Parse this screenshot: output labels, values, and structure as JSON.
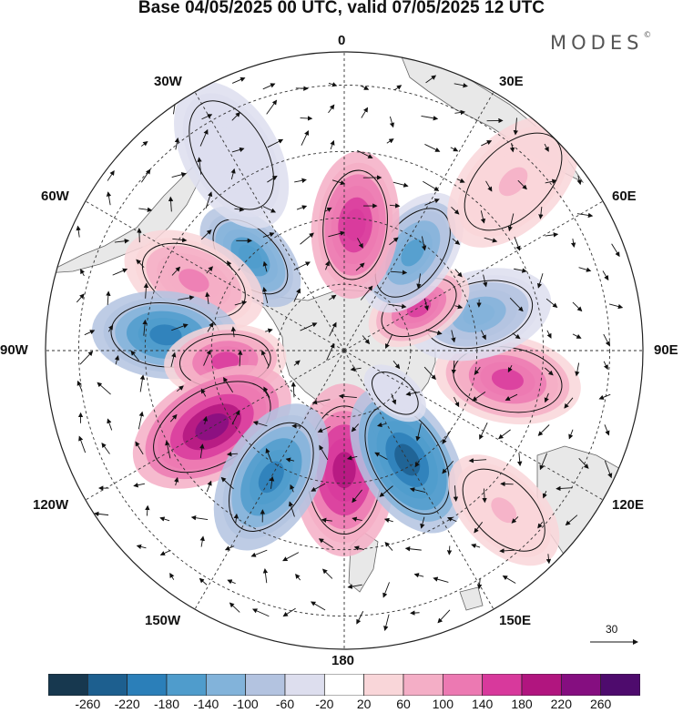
{
  "title": "Base 04/05/2025 00 UTC, valid 07/05/2025 12 UTC",
  "brand": {
    "name": "MODES",
    "mark": "©"
  },
  "longitude_labels": {
    "n0": "0",
    "n30e": "30E",
    "n60e": "60E",
    "n90e": "90E",
    "n120e": "120E",
    "n150e": "150E",
    "n180": "180",
    "n150w": "150W",
    "n120w": "120W",
    "n90w": "90W",
    "n60w": "60W",
    "n30w": "30W"
  },
  "reference_vector": {
    "label": "30"
  },
  "colorbar": {
    "ticks": [
      "-260",
      "-220",
      "-180",
      "-140",
      "-100",
      "-60",
      "-20",
      "20",
      "60",
      "100",
      "140",
      "180",
      "220",
      "260"
    ],
    "colors": [
      "#17384f",
      "#1d5f8f",
      "#2b7fb9",
      "#4f9ccc",
      "#82b3da",
      "#b3c3e0",
      "#dddeee",
      "#ffffff",
      "#f9d6d9",
      "#f4aec6",
      "#ec79b2",
      "#d8399c",
      "#b1157f",
      "#850e80",
      "#4e0b6d"
    ]
  },
  "map": {
    "projection": "south-polar-stereographic",
    "anomalies": [
      {
        "lon": 180,
        "colat": 18,
        "value": 190,
        "size": 13
      },
      {
        "lon": 150,
        "colat": 19,
        "value": -230,
        "size": 12
      },
      {
        "lon": 100,
        "colat": 25,
        "value": 150,
        "size": 11
      },
      {
        "lon": 75,
        "colat": 21,
        "value": -120,
        "size": 11
      },
      {
        "lon": 60,
        "colat": 13,
        "value": 140,
        "size": 8
      },
      {
        "lon": 35,
        "colat": 18,
        "value": -160,
        "size": 10
      },
      {
        "lon": 5,
        "colat": 19,
        "value": 160,
        "size": 11
      },
      {
        "lon": -45,
        "colat": 20,
        "value": -180,
        "size": 9
      },
      {
        "lon": -65,
        "colat": 25,
        "value": 110,
        "size": 11
      },
      {
        "lon": -85,
        "colat": 27,
        "value": -190,
        "size": 11
      },
      {
        "lon": -95,
        "colat": 18,
        "value": 150,
        "size": 9
      },
      {
        "lon": -120,
        "colat": 23,
        "value": 220,
        "size": 13
      },
      {
        "lon": -150,
        "colat": 22,
        "value": -200,
        "size": 12
      },
      {
        "lon": 130,
        "colat": 10,
        "value": -60,
        "size": 5
      },
      {
        "lon": -30,
        "colat": 34,
        "value": -60,
        "size": 12
      },
      {
        "lon": 45,
        "colat": 36,
        "value": 60,
        "size": 12
      },
      {
        "lon": 135,
        "colat": 34,
        "value": 60,
        "size": 10
      }
    ]
  }
}
